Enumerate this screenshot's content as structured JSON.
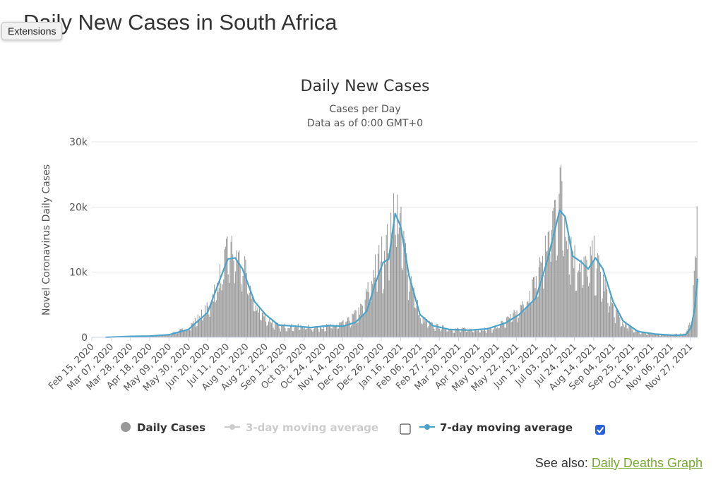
{
  "page": {
    "title": "Daily New Cases in South Africa",
    "tooltip": "Extensions"
  },
  "see_also": {
    "label": "See also:",
    "link_text": "Daily Deaths Graph"
  },
  "colors": {
    "bars": "#999999",
    "line": "#4aa3c8",
    "disabled": "#cccccc",
    "link": "#77a832"
  },
  "chart_data": {
    "type": "bar",
    "title": "Daily New Cases",
    "subtitle_line1": "Cases per Day",
    "subtitle_line2": "Data as of 0:00 GMT+0",
    "ylabel": "Novel Coronavirus Daily Cases",
    "ylim": [
      0,
      30000
    ],
    "y_ticks": [
      {
        "value": 0,
        "label": "0"
      },
      {
        "value": 10000,
        "label": "10k"
      },
      {
        "value": 20000,
        "label": "20k"
      },
      {
        "value": 30000,
        "label": "30k"
      }
    ],
    "x_start": "2020-02-15",
    "x_end": "2021-12-05",
    "x_tick_labels": [
      "Feb 15, 2020",
      "Mar 07, 2020",
      "Mar 28, 2020",
      "Apr 18, 2020",
      "May 09, 2020",
      "May 30, 2020",
      "Jun 20, 2020",
      "Jul 11, 2020",
      "Aug 01, 2020",
      "Aug 22, 2020",
      "Sep 12, 2020",
      "Oct 03, 2020",
      "Oct 24, 2020",
      "Nov 14, 2020",
      "Dec 05, 2020",
      "Dec 26, 2020",
      "Jan 16, 2021",
      "Feb 06, 2021",
      "Feb 27, 2021",
      "Mar 20, 2021",
      "Apr 10, 2021",
      "May 01, 2021",
      "May 22, 2021",
      "Jun 12, 2021",
      "Jul 03, 2021",
      "Jul 24, 2021",
      "Aug 14, 2021",
      "Sep 04, 2021",
      "Sep 25, 2021",
      "Oct 16, 2021",
      "Nov 06, 2021",
      "Nov 27, 2021"
    ],
    "series": [
      {
        "name": "Daily Cases",
        "kind": "bar",
        "enabled": true,
        "approx_points": [
          [
            "2020-02-15",
            0
          ],
          [
            "2020-03-05",
            0
          ],
          [
            "2020-03-28",
            200
          ],
          [
            "2020-04-18",
            250
          ],
          [
            "2020-05-09",
            450
          ],
          [
            "2020-05-30",
            1500
          ],
          [
            "2020-06-20",
            4500
          ],
          [
            "2020-07-05",
            10000
          ],
          [
            "2020-07-12",
            13000
          ],
          [
            "2020-07-20",
            13000
          ],
          [
            "2020-07-30",
            10000
          ],
          [
            "2020-08-10",
            5000
          ],
          [
            "2020-08-22",
            3000
          ],
          [
            "2020-09-05",
            1700
          ],
          [
            "2020-09-25",
            1700
          ],
          [
            "2020-10-15",
            1500
          ],
          [
            "2020-11-05",
            1800
          ],
          [
            "2020-11-20",
            2500
          ],
          [
            "2020-12-05",
            4500
          ],
          [
            "2020-12-20",
            11000
          ],
          [
            "2021-01-03",
            15000
          ],
          [
            "2021-01-09",
            21500
          ],
          [
            "2021-01-15",
            17000
          ],
          [
            "2021-01-25",
            10000
          ],
          [
            "2021-02-06",
            3000
          ],
          [
            "2021-02-20",
            1800
          ],
          [
            "2021-03-10",
            1300
          ],
          [
            "2021-04-01",
            1200
          ],
          [
            "2021-04-25",
            1300
          ],
          [
            "2021-05-10",
            2500
          ],
          [
            "2021-05-25",
            4000
          ],
          [
            "2021-06-10",
            8000
          ],
          [
            "2021-06-25",
            15000
          ],
          [
            "2021-07-03",
            20000
          ],
          [
            "2021-07-08",
            24000
          ],
          [
            "2021-07-15",
            17000
          ],
          [
            "2021-07-24",
            12000
          ],
          [
            "2021-08-05",
            10500
          ],
          [
            "2021-08-14",
            12500
          ],
          [
            "2021-08-25",
            8000
          ],
          [
            "2021-09-04",
            4500
          ],
          [
            "2021-09-15",
            2000
          ],
          [
            "2021-10-01",
            900
          ],
          [
            "2021-10-16",
            500
          ],
          [
            "2021-11-06",
            400
          ],
          [
            "2021-11-20",
            500
          ],
          [
            "2021-11-28",
            2500
          ],
          [
            "2021-12-02",
            11500
          ],
          [
            "2021-12-04",
            16500
          ]
        ]
      },
      {
        "name": "3-day moving average",
        "kind": "line",
        "enabled": false,
        "approx_points": []
      },
      {
        "name": "7-day moving average",
        "kind": "line",
        "enabled": true,
        "approx_points": [
          [
            "2020-03-01",
            0
          ],
          [
            "2020-03-28",
            150
          ],
          [
            "2020-04-18",
            200
          ],
          [
            "2020-05-09",
            400
          ],
          [
            "2020-05-30",
            1200
          ],
          [
            "2020-06-20",
            3800
          ],
          [
            "2020-07-05",
            9500
          ],
          [
            "2020-07-12",
            12000
          ],
          [
            "2020-07-20",
            12200
          ],
          [
            "2020-07-28",
            10500
          ],
          [
            "2020-08-10",
            5500
          ],
          [
            "2020-08-22",
            3500
          ],
          [
            "2020-09-05",
            1900
          ],
          [
            "2020-09-25",
            1700
          ],
          [
            "2020-10-10",
            1500
          ],
          [
            "2020-10-30",
            1800
          ],
          [
            "2020-11-14",
            1700
          ],
          [
            "2020-11-28",
            2300
          ],
          [
            "2020-12-10",
            4000
          ],
          [
            "2020-12-20",
            8500
          ],
          [
            "2020-12-28",
            11500
          ],
          [
            "2021-01-03",
            12000
          ],
          [
            "2021-01-10",
            19000
          ],
          [
            "2021-01-16",
            17000
          ],
          [
            "2021-01-25",
            9500
          ],
          [
            "2021-02-06",
            3500
          ],
          [
            "2021-02-20",
            1800
          ],
          [
            "2021-03-10",
            1200
          ],
          [
            "2021-04-01",
            1100
          ],
          [
            "2021-04-20",
            1300
          ],
          [
            "2021-05-10",
            2200
          ],
          [
            "2021-05-25",
            3500
          ],
          [
            "2021-06-12",
            6000
          ],
          [
            "2021-06-25",
            12000
          ],
          [
            "2021-07-01",
            15500
          ],
          [
            "2021-07-08",
            19500
          ],
          [
            "2021-07-14",
            18500
          ],
          [
            "2021-07-22",
            12500
          ],
          [
            "2021-08-01",
            11500
          ],
          [
            "2021-08-08",
            10500
          ],
          [
            "2021-08-16",
            12200
          ],
          [
            "2021-08-24",
            10500
          ],
          [
            "2021-09-04",
            5500
          ],
          [
            "2021-09-15",
            2500
          ],
          [
            "2021-10-01",
            900
          ],
          [
            "2021-10-20",
            500
          ],
          [
            "2021-11-10",
            300
          ],
          [
            "2021-11-22",
            400
          ],
          [
            "2021-11-28",
            1500
          ],
          [
            "2021-12-02",
            4500
          ],
          [
            "2021-12-05",
            9000
          ]
        ]
      }
    ],
    "legend": [
      {
        "label": "Daily Cases",
        "symbol": "circle",
        "enabled": true,
        "checkbox": null
      },
      {
        "label": "3-day moving average",
        "symbol": "line-marker",
        "enabled": false,
        "checkbox": false
      },
      {
        "label": "7-day moving average",
        "symbol": "line-marker",
        "enabled": true,
        "checkbox": true
      }
    ]
  }
}
